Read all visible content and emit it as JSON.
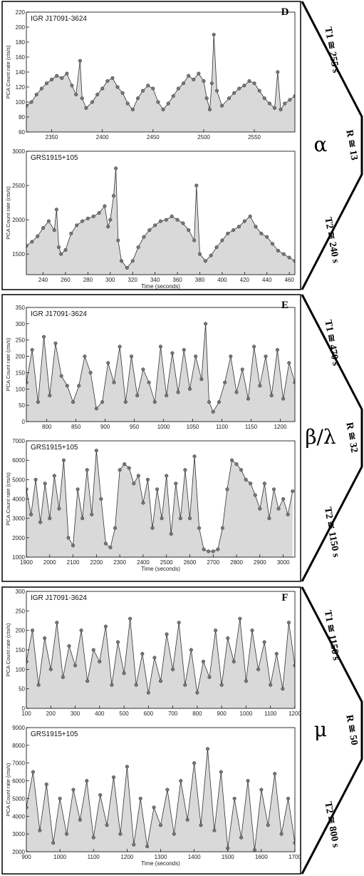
{
  "chart_data": [
    {
      "type": "line",
      "panel_label": "D",
      "class_symbol": "α",
      "annotations": {
        "t1": "T1 ≅ 255 s",
        "r": "R ≅ 13",
        "t2": "T2 ≅ 240 s"
      },
      "subplots": [
        {
          "source": "IGR J17091-3624",
          "ylabel": "PCA Count rate (cts/s)",
          "xlabel": "",
          "xlim": [
            2325,
            2590
          ],
          "ylim": [
            60,
            220
          ],
          "xticks": [
            2350,
            2400,
            2450,
            2500,
            2550
          ],
          "yticks": [
            60,
            80,
            100,
            120,
            140,
            160,
            180,
            200,
            220
          ],
          "x": [
            2325,
            2330,
            2335,
            2340,
            2345,
            2350,
            2355,
            2360,
            2365,
            2370,
            2374,
            2378,
            2380,
            2384,
            2390,
            2395,
            2400,
            2405,
            2410,
            2415,
            2420,
            2425,
            2430,
            2435,
            2440,
            2445,
            2450,
            2455,
            2460,
            2465,
            2470,
            2475,
            2480,
            2485,
            2490,
            2495,
            2500,
            2503,
            2506,
            2508,
            2510,
            2513,
            2518,
            2525,
            2530,
            2535,
            2540,
            2545,
            2550,
            2555,
            2560,
            2565,
            2570,
            2573,
            2576,
            2580,
            2585,
            2590
          ],
          "y": [
            95,
            100,
            110,
            118,
            125,
            130,
            135,
            132,
            138,
            122,
            110,
            155,
            105,
            92,
            100,
            110,
            118,
            128,
            132,
            120,
            112,
            98,
            90,
            105,
            115,
            122,
            118,
            100,
            90,
            98,
            108,
            118,
            125,
            135,
            130,
            138,
            128,
            105,
            90,
            125,
            190,
            115,
            95,
            105,
            112,
            118,
            122,
            128,
            125,
            115,
            105,
            98,
            92,
            140,
            90,
            98,
            103,
            108
          ]
        },
        {
          "source": "GRS1915+105",
          "ylabel": "PCA Count rate (cts/s)",
          "xlabel": "Time (seconds)",
          "xlim": [
            225,
            465
          ],
          "ylim": [
            1200,
            3000
          ],
          "xticks": [
            240,
            260,
            280,
            300,
            320,
            340,
            360,
            380,
            400,
            420,
            440,
            460
          ],
          "yticks": [
            1500,
            2000,
            2500,
            3000
          ],
          "x": [
            225,
            230,
            235,
            240,
            245,
            250,
            252,
            254,
            256,
            260,
            265,
            270,
            275,
            280,
            285,
            290,
            295,
            298,
            300,
            303,
            305,
            307,
            310,
            315,
            320,
            325,
            330,
            335,
            340,
            345,
            350,
            355,
            360,
            365,
            370,
            375,
            377,
            380,
            385,
            390,
            395,
            400,
            405,
            410,
            415,
            420,
            425,
            430,
            435,
            440,
            445,
            450,
            455,
            460,
            465
          ],
          "y": [
            1620,
            1680,
            1760,
            1880,
            1980,
            1850,
            2150,
            1600,
            1500,
            1560,
            1800,
            1920,
            1980,
            2020,
            2050,
            2100,
            2200,
            1900,
            2000,
            2350,
            2750,
            1700,
            1400,
            1300,
            1400,
            1600,
            1750,
            1850,
            1920,
            1980,
            2000,
            2050,
            2000,
            1950,
            1850,
            1700,
            2500,
            1500,
            1400,
            1480,
            1600,
            1700,
            1800,
            1850,
            1900,
            1980,
            2050,
            1900,
            1800,
            1750,
            1650,
            1550,
            1500,
            1450,
            1400
          ]
        }
      ]
    },
    {
      "type": "line",
      "panel_label": "E",
      "class_symbol": "β/λ",
      "annotations": {
        "t1": "T1 ≅ 470 s",
        "r": "R ≅ 32",
        "t2": "T2 ≅ 1150 s"
      },
      "subplots": [
        {
          "source": "IGR J17091-3624",
          "ylabel": "PCA Count rate (cts/s)",
          "xlabel": "",
          "xlim": [
            765,
            1225
          ],
          "ylim": [
            0,
            350
          ],
          "xticks": [
            800,
            850,
            900,
            950,
            1000,
            1050,
            1100,
            1150,
            1200
          ],
          "yticks": [
            0,
            50,
            100,
            150,
            200,
            250,
            300,
            350
          ],
          "x": [
            765,
            775,
            785,
            795,
            805,
            815,
            825,
            835,
            845,
            855,
            865,
            875,
            885,
            895,
            905,
            915,
            925,
            935,
            945,
            955,
            965,
            975,
            985,
            995,
            1005,
            1015,
            1025,
            1035,
            1045,
            1055,
            1065,
            1072,
            1078,
            1085,
            1095,
            1105,
            1115,
            1125,
            1135,
            1145,
            1155,
            1165,
            1175,
            1185,
            1195,
            1205,
            1215,
            1225
          ],
          "y": [
            120,
            220,
            60,
            260,
            80,
            240,
            140,
            110,
            60,
            110,
            200,
            150,
            40,
            60,
            180,
            120,
            230,
            60,
            200,
            80,
            160,
            120,
            60,
            230,
            80,
            210,
            90,
            220,
            100,
            200,
            130,
            300,
            60,
            30,
            60,
            120,
            200,
            90,
            160,
            70,
            230,
            110,
            200,
            80,
            220,
            70,
            180,
            120
          ]
        },
        {
          "source": "GRS1915+105",
          "ylabel": "PCA Count rate (cts/s)",
          "xlabel": "Time (seconds)",
          "xlim": [
            1900,
            3050
          ],
          "ylim": [
            1000,
            7000
          ],
          "xticks": [
            1900,
            2000,
            2100,
            2200,
            2300,
            2400,
            2500,
            2600,
            2700,
            2800,
            2900,
            3000
          ],
          "yticks": [
            1000,
            2000,
            3000,
            4000,
            5000,
            6000,
            7000
          ],
          "x": [
            1900,
            1920,
            1940,
            1960,
            1980,
            2000,
            2020,
            2040,
            2060,
            2080,
            2100,
            2120,
            2140,
            2160,
            2180,
            2200,
            2220,
            2240,
            2260,
            2280,
            2300,
            2320,
            2340,
            2360,
            2380,
            2400,
            2420,
            2440,
            2460,
            2480,
            2500,
            2520,
            2540,
            2560,
            2580,
            2600,
            2620,
            2640,
            2660,
            2680,
            2700,
            2720,
            2740,
            2760,
            2780,
            2800,
            2820,
            2840,
            2860,
            2880,
            2900,
            2920,
            2940,
            2960,
            2980,
            3000,
            3020,
            3040
          ],
          "y": [
            4500,
            3200,
            5000,
            2800,
            4800,
            3000,
            5200,
            3500,
            6000,
            2000,
            1600,
            4500,
            3000,
            5500,
            3200,
            6500,
            4000,
            1700,
            1500,
            2500,
            5500,
            5800,
            5600,
            4800,
            5200,
            3800,
            5000,
            2500,
            4500,
            3000,
            5200,
            2200,
            4800,
            3000,
            5500,
            3000,
            6200,
            2500,
            1400,
            1300,
            1300,
            1400,
            2500,
            4500,
            6000,
            5800,
            5500,
            5000,
            4800,
            4200,
            3500,
            4800,
            3000,
            4500,
            3500,
            4000,
            3200,
            4400
          ]
        }
      ]
    },
    {
      "type": "line",
      "panel_label": "F",
      "class_symbol": "μ",
      "annotations": {
        "t1": "T1 ≅ 1150 s",
        "r": "R ≅ 50",
        "t2": "T2 ≅ 800 s"
      },
      "subplots": [
        {
          "source": "IGR J17091-3624",
          "ylabel": "PCA Count rate (cts/s)",
          "xlabel": "",
          "xlim": [
            100,
            1200
          ],
          "ylim": [
            0,
            300
          ],
          "xticks": [
            100,
            200,
            300,
            400,
            500,
            600,
            700,
            800,
            900,
            1000,
            1100,
            1200
          ],
          "yticks": [
            0,
            50,
            100,
            150,
            200,
            250,
            300
          ],
          "x": [
            100,
            125,
            150,
            175,
            200,
            225,
            250,
            275,
            300,
            325,
            350,
            375,
            400,
            425,
            450,
            475,
            500,
            525,
            550,
            575,
            600,
            625,
            650,
            675,
            700,
            725,
            750,
            775,
            800,
            825,
            850,
            875,
            900,
            925,
            950,
            975,
            1000,
            1025,
            1050,
            1075,
            1100,
            1125,
            1150,
            1175,
            1200
          ],
          "y": [
            120,
            200,
            60,
            180,
            100,
            220,
            80,
            160,
            110,
            200,
            70,
            150,
            120,
            210,
            60,
            170,
            90,
            230,
            60,
            140,
            40,
            130,
            70,
            190,
            100,
            220,
            60,
            150,
            40,
            120,
            80,
            200,
            60,
            180,
            120,
            230,
            70,
            200,
            100,
            170,
            60,
            140,
            50,
            220,
            110
          ]
        },
        {
          "source": "GRS1915+105",
          "ylabel": "PCA Count rate (cts/s)",
          "xlabel": "Time (seconds)",
          "xlim": [
            900,
            1700
          ],
          "ylim": [
            2000,
            9000
          ],
          "xticks": [
            900,
            1000,
            1100,
            1200,
            1300,
            1400,
            1500,
            1600,
            1700
          ],
          "yticks": [
            2000,
            3000,
            4000,
            5000,
            6000,
            7000,
            8000,
            9000
          ],
          "x": [
            900,
            920,
            940,
            960,
            980,
            1000,
            1020,
            1040,
            1060,
            1080,
            1100,
            1120,
            1140,
            1160,
            1180,
            1200,
            1220,
            1240,
            1260,
            1280,
            1300,
            1320,
            1340,
            1360,
            1380,
            1400,
            1420,
            1440,
            1460,
            1480,
            1500,
            1520,
            1540,
            1560,
            1580,
            1600,
            1620,
            1640,
            1660,
            1680,
            1700
          ],
          "y": [
            4500,
            6500,
            3200,
            5800,
            2500,
            5000,
            3000,
            5500,
            3800,
            6000,
            2800,
            5200,
            3500,
            6200,
            3000,
            6800,
            2400,
            5000,
            2300,
            4500,
            3500,
            5500,
            3000,
            6000,
            3800,
            7000,
            3500,
            7800,
            3200,
            6500,
            2200,
            5000,
            2800,
            6000,
            2100,
            5500,
            3500,
            6400,
            3000,
            5000,
            2500
          ]
        }
      ]
    }
  ]
}
